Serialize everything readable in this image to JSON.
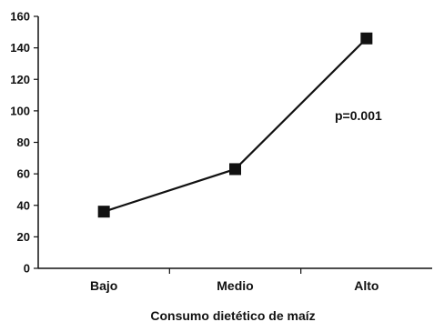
{
  "chart_data": {
    "type": "line",
    "categories": [
      "Bajo",
      "Medio",
      "Alto"
    ],
    "series": [
      {
        "values": [
          36,
          63,
          146
        ]
      }
    ],
    "xlabel": "Consumo dietético de maíz",
    "ylabel": "",
    "ylim": [
      0,
      160
    ],
    "yticks": [
      0,
      20,
      40,
      60,
      80,
      100,
      120,
      140,
      160
    ],
    "annotations": [
      {
        "text": "p=0.001"
      }
    ],
    "grid": false,
    "marker": "square",
    "colors": {
      "line": "#111111",
      "axis": "#111111"
    }
  }
}
